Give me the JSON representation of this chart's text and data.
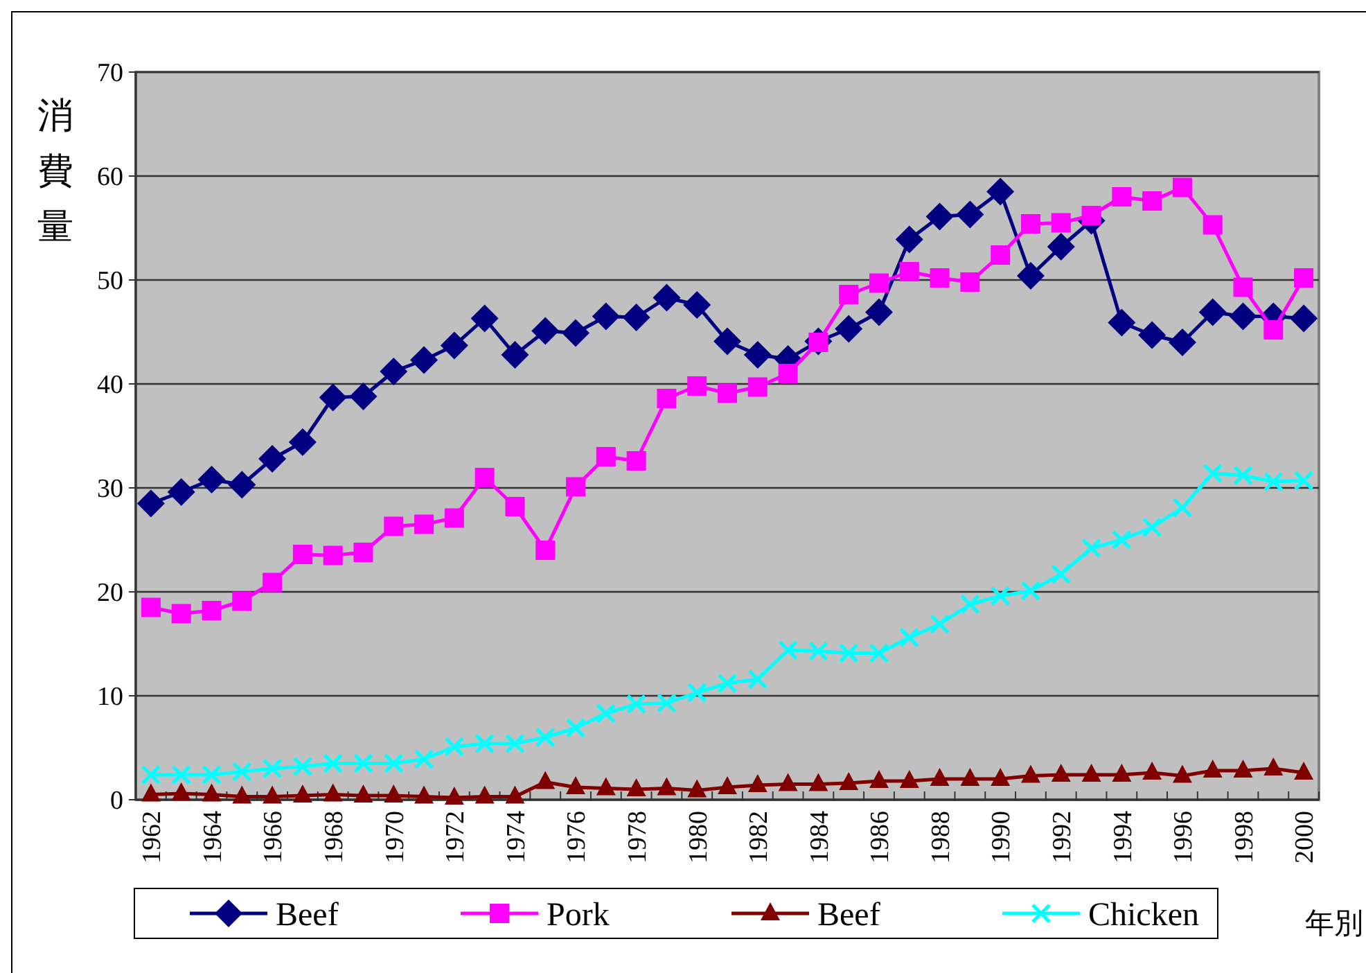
{
  "chart_data": {
    "type": "line",
    "ylabel": "消費量",
    "xlabel": "年別",
    "categories": [
      "1962",
      null,
      "1964",
      null,
      "1966",
      null,
      "1968",
      null,
      "1970",
      null,
      "1972",
      null,
      "1974",
      null,
      "1976",
      null,
      "1978",
      null,
      "1980",
      null,
      "1982",
      null,
      "1984",
      null,
      "1986",
      null,
      "1988",
      null,
      "1990",
      null,
      "1992",
      null,
      "1994",
      null,
      "1996",
      null,
      "1998",
      null,
      "2000"
    ],
    "ylim": [
      0,
      70
    ],
    "yticks": [
      0,
      10,
      20,
      30,
      40,
      50,
      60,
      70
    ],
    "grid": "y",
    "legend": "bottom",
    "line_style": "solid",
    "series": [
      {
        "name": "Beef",
        "color": "#000080",
        "marker": "diamond",
        "values": [
          28.5,
          29.6,
          30.8,
          30.3,
          32.8,
          34.4,
          38.7,
          38.8,
          41.2,
          42.3,
          43.7,
          46.3,
          42.8,
          45.1,
          44.9,
          46.5,
          46.4,
          48.3,
          47.6,
          44.1,
          42.8,
          42.4,
          44.1,
          45.3,
          46.9,
          53.9,
          56.1,
          56.3,
          58.5,
          50.4,
          53.2,
          55.7,
          45.9,
          44.7,
          44.0,
          46.9,
          46.5,
          46.5,
          46.3
        ]
      },
      {
        "name": "Pork",
        "color": "#ff00ff",
        "marker": "square",
        "values": [
          18.5,
          17.9,
          18.2,
          19.1,
          20.9,
          23.6,
          23.5,
          23.8,
          26.3,
          26.5,
          27.1,
          31.0,
          28.2,
          24.0,
          30.1,
          33.0,
          32.6,
          38.6,
          39.8,
          39.1,
          39.7,
          41.0,
          44.0,
          48.6,
          49.7,
          50.8,
          50.2,
          49.8,
          52.4,
          55.4,
          55.5,
          56.2,
          58.0,
          57.6,
          58.9,
          55.3,
          49.3,
          45.2,
          50.2
        ]
      },
      {
        "name": "Beef",
        "color": "#800000",
        "marker": "triangle",
        "values": [
          0.5,
          0.6,
          0.5,
          0.3,
          0.3,
          0.4,
          0.5,
          0.4,
          0.4,
          0.3,
          0.2,
          0.3,
          0.3,
          1.7,
          1.2,
          1.1,
          1.0,
          1.1,
          0.9,
          1.2,
          1.4,
          1.5,
          1.5,
          1.6,
          1.8,
          1.8,
          2.0,
          2.0,
          2.0,
          2.3,
          2.4,
          2.4,
          2.4,
          2.6,
          2.3,
          2.8,
          2.8,
          3.0,
          2.6
        ]
      },
      {
        "name": "Chicken",
        "color": "#00ffff",
        "marker": "cross",
        "values": [
          2.4,
          2.4,
          2.4,
          2.7,
          3.0,
          3.2,
          3.5,
          3.5,
          3.5,
          3.9,
          5.1,
          5.4,
          5.4,
          6.0,
          6.9,
          8.3,
          9.2,
          9.3,
          10.3,
          11.2,
          11.6,
          14.4,
          14.3,
          14.1,
          14.1,
          15.6,
          16.9,
          18.8,
          19.6,
          20.1,
          21.7,
          24.2,
          25.0,
          26.2,
          28.1,
          31.4,
          31.2,
          30.6,
          30.7
        ]
      }
    ]
  }
}
